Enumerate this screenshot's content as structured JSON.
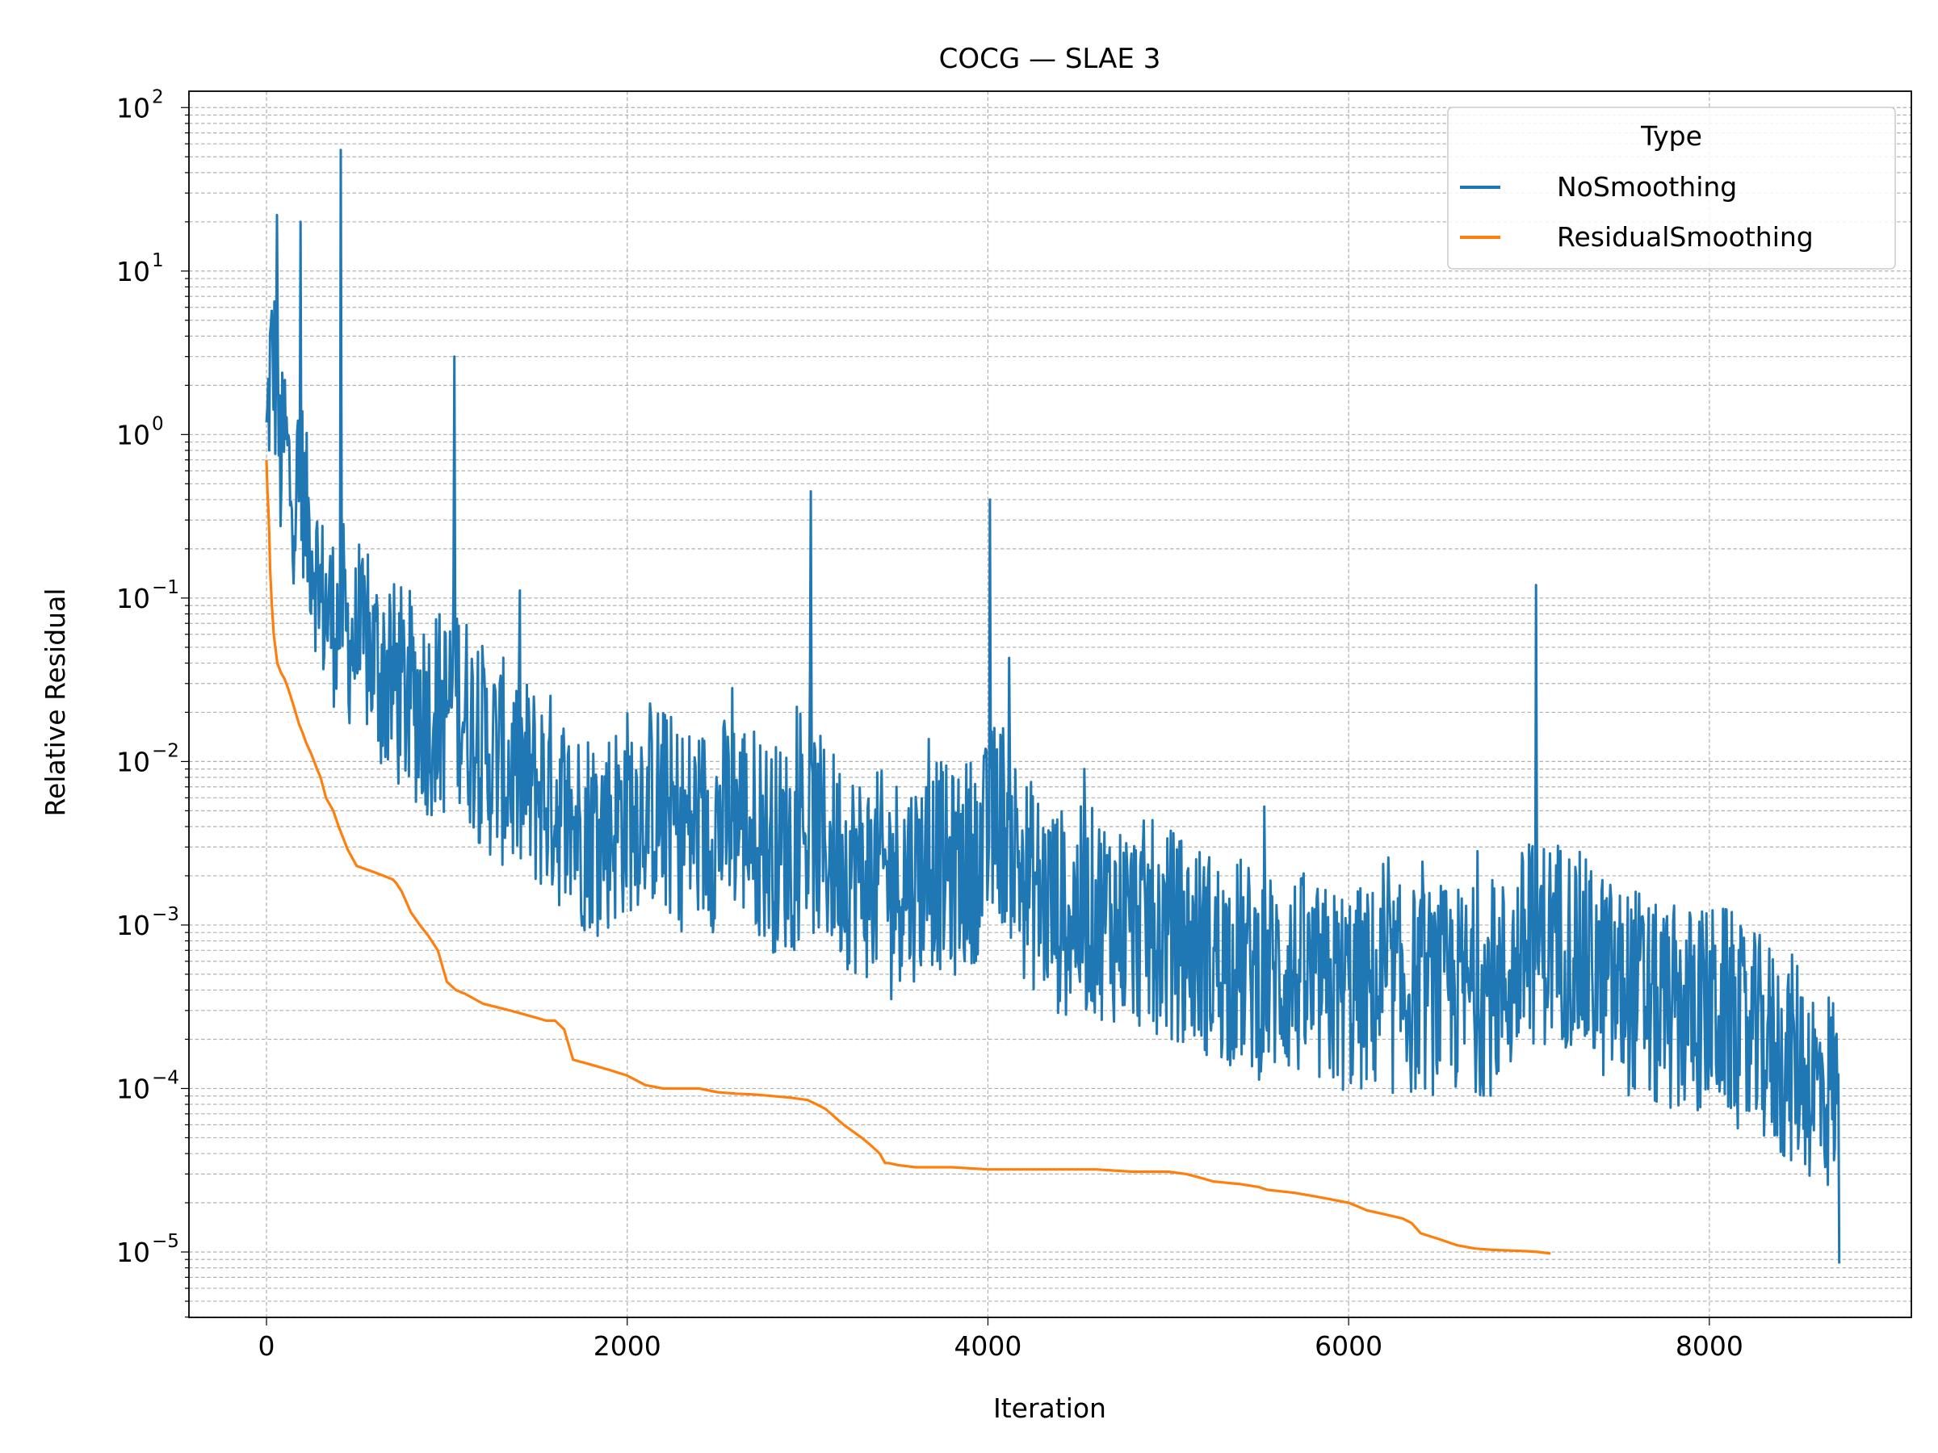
{
  "chart_data": {
    "type": "line",
    "title": "COCG — SLAE 3",
    "xlabel": "Iteration",
    "ylabel": "Relative Residual",
    "xlim": [
      -430,
      9120
    ],
    "ylim_log10": [
      -5.4,
      2.1
    ],
    "yscale": "log",
    "x_ticks": [
      0,
      2000,
      4000,
      6000,
      8000
    ],
    "x_tick_labels": [
      "0",
      "2000",
      "4000",
      "6000",
      "8000"
    ],
    "y_tick_exponents": [
      2,
      1,
      0,
      -1,
      -2,
      -3,
      -4,
      -5
    ],
    "y_tick_base": "10",
    "y_tick_exponent_labels": [
      "2",
      "1",
      "0",
      "−1",
      "−2",
      "−3",
      "−4",
      "−5"
    ],
    "grid": true,
    "legend": {
      "title": "Type",
      "placement": "top-right"
    },
    "series": [
      {
        "name": "NoSmoothing",
        "color": "#1f77b4",
        "x": [
          0,
          20,
          40,
          60,
          80,
          100,
          130,
          160,
          200,
          220,
          260,
          300,
          350,
          400,
          420,
          440,
          500,
          550,
          600,
          700,
          800,
          900,
          1000,
          1040,
          1100,
          1200,
          1300,
          1400,
          1500,
          1600,
          1700,
          1800,
          1900,
          2000,
          2100,
          2200,
          2300,
          2400,
          2500,
          2600,
          2700,
          2800,
          2900,
          3000,
          3100,
          3200,
          3300,
          3400,
          3500,
          3600,
          3700,
          3800,
          3900,
          4000,
          4050,
          4100,
          4200,
          4300,
          4400,
          4500,
          4600,
          4700,
          4800,
          4900,
          5000,
          5100,
          5200,
          5300,
          5400,
          5500,
          5600,
          5700,
          5800,
          5900,
          6000,
          6100,
          6200,
          6300,
          6400,
          6500,
          6600,
          6700,
          6800,
          6900,
          7000,
          7100,
          7200,
          7300,
          7400,
          7500,
          7600,
          7700,
          7800,
          7900,
          8000,
          8100,
          8200,
          8300,
          8400,
          8500,
          8600,
          8700,
          8720
        ],
        "y_mid": [
          0.8,
          2.5,
          3.0,
          1.2,
          0.6,
          1.0,
          0.5,
          0.4,
          0.5,
          0.3,
          0.2,
          0.1,
          0.08,
          0.07,
          0.1,
          0.06,
          0.05,
          0.05,
          0.04,
          0.03,
          0.025,
          0.02,
          0.02,
          0.03,
          0.02,
          0.012,
          0.01,
          0.008,
          0.007,
          0.006,
          0.004,
          0.004,
          0.004,
          0.005,
          0.006,
          0.005,
          0.004,
          0.004,
          0.004,
          0.005,
          0.004,
          0.003,
          0.003,
          0.004,
          0.003,
          0.0025,
          0.002,
          0.002,
          0.002,
          0.002,
          0.0025,
          0.002,
          0.0025,
          0.003,
          0.005,
          0.004,
          0.002,
          0.0015,
          0.0012,
          0.0012,
          0.0012,
          0.0011,
          0.001,
          0.001,
          0.0009,
          0.0008,
          0.0007,
          0.0006,
          0.0006,
          0.0005,
          0.0005,
          0.0005,
          0.0004,
          0.0004,
          0.0004,
          0.0004,
          0.0004,
          0.0004,
          0.0004,
          0.0004,
          0.0004,
          0.0004,
          0.0004,
          0.0005,
          0.0008,
          0.0008,
          0.0008,
          0.0006,
          0.0005,
          0.0004,
          0.0004,
          0.0003,
          0.0003,
          0.0003,
          0.0003,
          0.0003,
          0.0002,
          0.0002,
          0.00015,
          0.00015,
          0.0001,
          0.0001,
          5e-05
        ]
      },
      {
        "name": "ResidualSmoothing",
        "color": "#ff7f0e",
        "x": [
          0,
          5,
          10,
          15,
          20,
          30,
          40,
          60,
          80,
          100,
          120,
          150,
          180,
          200,
          220,
          250,
          280,
          300,
          330,
          370,
          400,
          450,
          500,
          600,
          650,
          700,
          720,
          750,
          800,
          850,
          900,
          950,
          1000,
          1050,
          1100,
          1200,
          1300,
          1400,
          1500,
          1550,
          1600,
          1650,
          1700,
          1800,
          1900,
          2000,
          2100,
          2200,
          2300,
          2400,
          2500,
          2600,
          2700,
          2800,
          2900,
          3000,
          3050,
          3100,
          3200,
          3300,
          3350,
          3400,
          3430,
          3450,
          3500,
          3600,
          3700,
          3800,
          4000,
          4200,
          4400,
          4600,
          4800,
          5000,
          5100,
          5150,
          5200,
          5250,
          5400,
          5500,
          5550,
          5700,
          5800,
          5900,
          6000,
          6050,
          6100,
          6200,
          6300,
          6350,
          6400,
          6500,
          6600,
          6700,
          6800,
          6900,
          7000,
          7050,
          7120
        ],
        "y": [
          0.7,
          0.45,
          0.35,
          0.25,
          0.15,
          0.09,
          0.06,
          0.04,
          0.035,
          0.032,
          0.028,
          0.022,
          0.017,
          0.015,
          0.013,
          0.011,
          0.009,
          0.008,
          0.006,
          0.005,
          0.004,
          0.0029,
          0.0023,
          0.0021,
          0.002,
          0.0019,
          0.0018,
          0.0016,
          0.0012,
          0.001,
          0.00085,
          0.0007,
          0.00045,
          0.0004,
          0.00038,
          0.00033,
          0.00031,
          0.00029,
          0.00027,
          0.00026,
          0.00026,
          0.00023,
          0.00015,
          0.00014,
          0.00013,
          0.00012,
          0.000105,
          0.0001,
          0.0001,
          0.0001,
          9.5e-05,
          9.3e-05,
          9.2e-05,
          9e-05,
          8.8e-05,
          8.5e-05,
          8e-05,
          7.5e-05,
          6e-05,
          5e-05,
          4.5e-05,
          4e-05,
          3.5e-05,
          3.5e-05,
          3.4e-05,
          3.3e-05,
          3.3e-05,
          3.3e-05,
          3.2e-05,
          3.2e-05,
          3.2e-05,
          3.2e-05,
          3.1e-05,
          3.1e-05,
          3e-05,
          2.9e-05,
          2.8e-05,
          2.7e-05,
          2.6e-05,
          2.5e-05,
          2.4e-05,
          2.3e-05,
          2.2e-05,
          2.1e-05,
          2e-05,
          1.9e-05,
          1.8e-05,
          1.7e-05,
          1.6e-05,
          1.5e-05,
          1.3e-05,
          1.2e-05,
          1.1e-05,
          1.05e-05,
          1.03e-05,
          1.02e-05,
          1.01e-05,
          1e-05,
          9.8e-06
        ]
      }
    ],
    "highlighted_peaks": [
      {
        "x": 410,
        "y": 55
      },
      {
        "x": 60,
        "y": 22
      },
      {
        "x": 190,
        "y": 20
      },
      {
        "x": 1040,
        "y": 3
      },
      {
        "x": 3020,
        "y": 0.45
      },
      {
        "x": 4010,
        "y": 0.4
      },
      {
        "x": 7040,
        "y": 0.12
      },
      {
        "x": 8720,
        "y": 8.5e-06
      }
    ]
  }
}
